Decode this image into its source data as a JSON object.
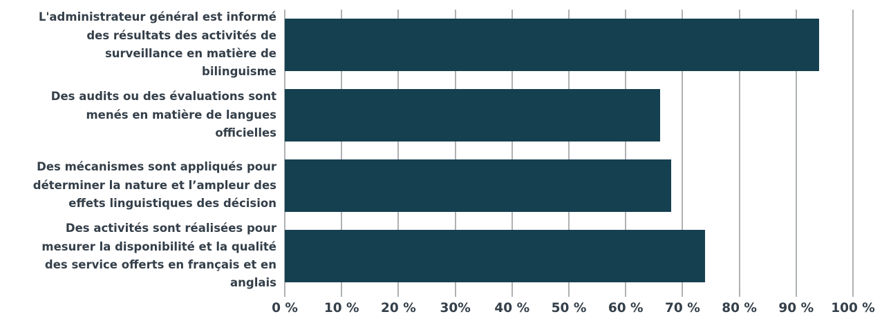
{
  "chart_data": {
    "type": "bar",
    "orientation": "horizontal",
    "title": "",
    "xlabel": "",
    "ylabel": "",
    "categories": [
      "L'administrateur général est informé des résultats des activités de surveillance en matière de bilinguisme",
      "Des audits ou des évaluations sont menés en matière de langues officielles",
      "Des mécanismes sont appliqués pour déterminer la nature et l’ampleur des effets linguistiques des décision",
      "Des activités sont réalisées pour mesurer la disponibilité et la qualité des service offerts en français et en anglais"
    ],
    "values": [
      94,
      66,
      68,
      74
    ],
    "xlim": [
      0,
      100
    ],
    "x_ticks": [
      0,
      10,
      20,
      30,
      40,
      50,
      60,
      70,
      80,
      90,
      100
    ],
    "x_tick_labels": [
      "0 %",
      "10 %",
      "20 %",
      "30%",
      "40 %",
      "50 %",
      "60 %",
      "70 %",
      "80 %",
      "90 %",
      "100 %"
    ],
    "grid": "vertical",
    "legend": "none"
  },
  "colors": {
    "bar": "#154050",
    "gridline": "#AEB1B3",
    "text": "#343F49"
  }
}
